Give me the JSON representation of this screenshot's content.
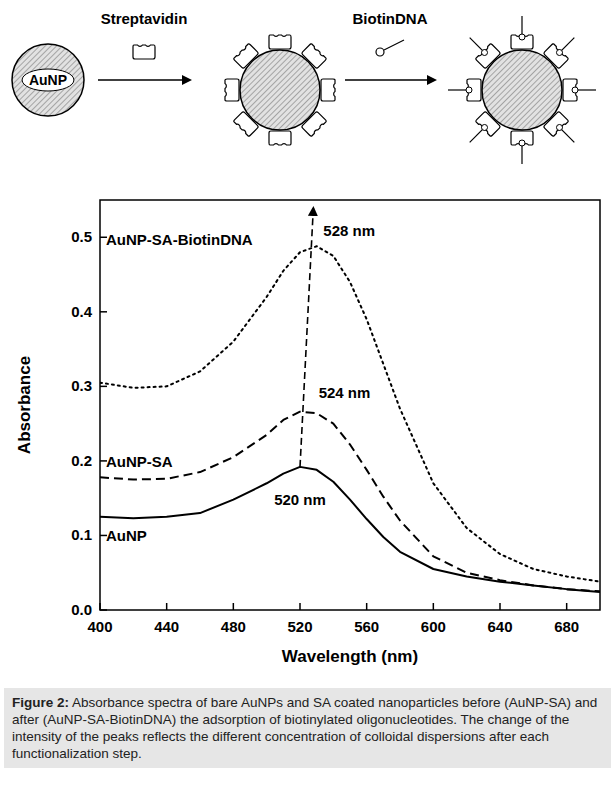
{
  "chart_data": {
    "type": "line",
    "x_label": "Wavelength (nm)",
    "y_label": "Absorbance",
    "x": [
      400,
      420,
      440,
      460,
      480,
      500,
      510,
      520,
      530,
      540,
      550,
      560,
      570,
      580,
      600,
      620,
      640,
      660,
      680,
      700
    ],
    "series": [
      {
        "name": "AuNP",
        "color": "#000000",
        "line_style": "solid",
        "values": [
          0.125,
          0.123,
          0.125,
          0.13,
          0.148,
          0.17,
          0.183,
          0.192,
          0.188,
          0.172,
          0.148,
          0.122,
          0.098,
          0.078,
          0.055,
          0.045,
          0.038,
          0.033,
          0.028,
          0.024
        ]
      },
      {
        "name": "AuNP-SA",
        "color": "#000000",
        "line_style": "dashed",
        "values": [
          0.178,
          0.175,
          0.176,
          0.185,
          0.205,
          0.235,
          0.255,
          0.266,
          0.264,
          0.25,
          0.222,
          0.188,
          0.152,
          0.12,
          0.072,
          0.05,
          0.04,
          0.033,
          0.028,
          0.025
        ]
      },
      {
        "name": "AuNP-SA-BiotinDNA",
        "color": "#000000",
        "line_style": "dotted",
        "values": [
          0.305,
          0.298,
          0.3,
          0.32,
          0.36,
          0.42,
          0.455,
          0.48,
          0.488,
          0.475,
          0.44,
          0.39,
          0.33,
          0.27,
          0.17,
          0.11,
          0.075,
          0.055,
          0.045,
          0.038
        ]
      }
    ],
    "peaks": [
      {
        "x": 520,
        "y": 0.192,
        "label": "520 nm"
      },
      {
        "x": 524,
        "y": 0.266,
        "label": "524 nm"
      },
      {
        "x": 528,
        "y": 0.488,
        "label": "528 nm"
      }
    ],
    "xlim": [
      400,
      700
    ],
    "xticks": [
      400,
      440,
      480,
      520,
      560,
      600,
      640,
      680
    ],
    "ylim": [
      0,
      0.55
    ],
    "yticks": [
      {
        "value": 0,
        "label": "0.0"
      },
      {
        "value": 0.1,
        "label": "0.1"
      },
      {
        "value": 0.2,
        "label": "0.2"
      },
      {
        "value": 0.3,
        "label": "0.3"
      },
      {
        "value": 0.4,
        "label": "0.4"
      },
      {
        "value": 0.5,
        "label": "0.5"
      }
    ],
    "grid": false
  },
  "diagram": {
    "nodes": [
      "AuNP"
    ],
    "steps": [
      "Streptavidin",
      "BiotinDNA"
    ]
  },
  "caption": {
    "label": "Figure 2:",
    "text": "Absorbance spectra of bare AuNPs and SA coated nanoparticles before (AuNP-SA) and after (AuNP-SA-BiotinDNA) the adsorption of biotinylated oligonucleotides. The change of the intensity of the peaks reflects the different concentration of colloidal dispersions after each functionalization step."
  }
}
